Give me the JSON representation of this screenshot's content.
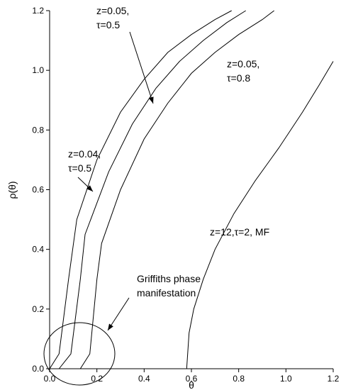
{
  "chart_data": {
    "type": "line",
    "title": "",
    "xlabel": "θ",
    "ylabel": "ρ(θ)",
    "xlim": [
      0.0,
      1.2
    ],
    "ylim": [
      0.0,
      1.2
    ],
    "x_ticks": [
      "0.0",
      "0.2",
      "0.4",
      "0.6",
      "0.8",
      "1.0",
      "1.2"
    ],
    "y_ticks": [
      "0.0",
      "0.2",
      "0.4",
      "0.6",
      "0.8",
      "1.0",
      "1.2"
    ],
    "grid": false,
    "legend": "none",
    "series": [
      {
        "name": "z=0.04, τ=0.5",
        "points": [
          [
            0.0,
            0.0
          ],
          [
            0.04,
            0.05
          ],
          [
            0.08,
            0.3
          ],
          [
            0.115,
            0.5
          ],
          [
            0.2,
            0.7
          ],
          [
            0.3,
            0.86
          ],
          [
            0.4,
            0.97
          ],
          [
            0.5,
            1.06
          ],
          [
            0.6,
            1.12
          ],
          [
            0.7,
            1.17
          ],
          [
            0.77,
            1.2
          ]
        ]
      },
      {
        "name": "z=0.05, τ=0.5",
        "points": [
          [
            0.04,
            0.0
          ],
          [
            0.09,
            0.05
          ],
          [
            0.13,
            0.3
          ],
          [
            0.15,
            0.45
          ],
          [
            0.25,
            0.66
          ],
          [
            0.35,
            0.82
          ],
          [
            0.45,
            0.94
          ],
          [
            0.55,
            1.03
          ],
          [
            0.65,
            1.1
          ],
          [
            0.75,
            1.16
          ],
          [
            0.83,
            1.2
          ]
        ]
      },
      {
        "name": "z=0.05, τ=0.8",
        "points": [
          [
            0.13,
            0.0
          ],
          [
            0.17,
            0.05
          ],
          [
            0.2,
            0.3
          ],
          [
            0.22,
            0.42
          ],
          [
            0.3,
            0.6
          ],
          [
            0.4,
            0.77
          ],
          [
            0.5,
            0.89
          ],
          [
            0.6,
            0.99
          ],
          [
            0.7,
            1.06
          ],
          [
            0.8,
            1.12
          ],
          [
            0.9,
            1.17
          ],
          [
            0.95,
            1.2
          ]
        ]
      },
      {
        "name": "z=12,τ=2, MF",
        "points": [
          [
            0.58,
            0.0
          ],
          [
            0.59,
            0.12
          ],
          [
            0.61,
            0.2
          ],
          [
            0.65,
            0.3
          ],
          [
            0.7,
            0.4
          ],
          [
            0.78,
            0.52
          ],
          [
            0.87,
            0.63
          ],
          [
            0.97,
            0.74
          ],
          [
            1.07,
            0.86
          ],
          [
            1.14,
            0.95
          ],
          [
            1.2,
            1.03
          ]
        ]
      }
    ],
    "annotations": [
      {
        "id": "z005t05",
        "lines": [
          "z=0.05,",
          "τ=0.5"
        ]
      },
      {
        "id": "z004t05",
        "lines": [
          "z=0.04,",
          "τ=0.5"
        ]
      },
      {
        "id": "z005t08",
        "lines": [
          "z=0.05,",
          "τ=0.8"
        ]
      },
      {
        "id": "mf",
        "lines": [
          "z=12,τ=2, MF"
        ]
      },
      {
        "id": "griffiths",
        "lines": [
          "Griffiths phase",
          "manifestation"
        ]
      }
    ]
  }
}
